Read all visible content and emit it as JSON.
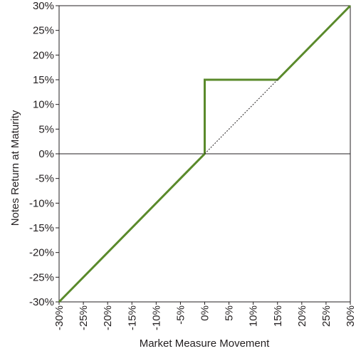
{
  "chart_data": {
    "type": "line",
    "xlabel": "Market Measure Movement",
    "ylabel": "Notes Return at Maturity",
    "xlim": [
      -30,
      30
    ],
    "ylim": [
      -30,
      30
    ],
    "x_ticks": [
      "-30%",
      "-25%",
      "-20%",
      "-15%",
      "-10%",
      "-5%",
      "0%",
      "5%",
      "10%",
      "15%",
      "20%",
      "25%",
      "30%"
    ],
    "y_ticks": [
      "30%",
      "25%",
      "20%",
      "15%",
      "10%",
      "5%",
      "0%",
      "-5%",
      "-10%",
      "-15%",
      "-20%",
      "-25%",
      "-30%"
    ],
    "grid": false,
    "series": [
      {
        "style": "solid",
        "color": "#5a8a2b",
        "x": [
          -30,
          0,
          0,
          15,
          30
        ],
        "y": [
          -30,
          0,
          15,
          15,
          30
        ]
      },
      {
        "style": "dotted",
        "color": "#231f20",
        "x": [
          0,
          15
        ],
        "y": [
          0,
          15
        ]
      }
    ],
    "reference_lines": [
      {
        "axis": "y",
        "value": 0,
        "color": "#231f20"
      }
    ]
  }
}
